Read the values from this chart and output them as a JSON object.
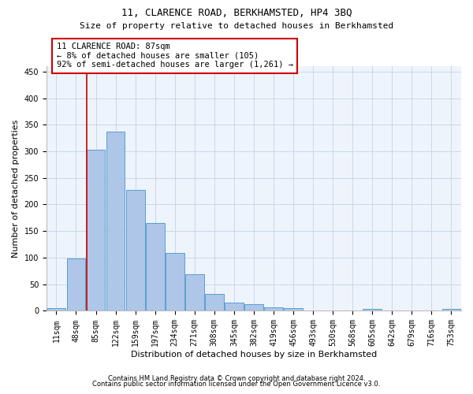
{
  "title": "11, CLARENCE ROAD, BERKHAMSTED, HP4 3BQ",
  "subtitle": "Size of property relative to detached houses in Berkhamsted",
  "xlabel": "Distribution of detached houses by size in Berkhamsted",
  "ylabel": "Number of detached properties",
  "footnote1": "Contains HM Land Registry data © Crown copyright and database right 2024.",
  "footnote2": "Contains public sector information licensed under the Open Government Licence v3.0.",
  "categories": [
    "11sqm",
    "48sqm",
    "85sqm",
    "122sqm",
    "159sqm",
    "197sqm",
    "234sqm",
    "271sqm",
    "308sqm",
    "345sqm",
    "382sqm",
    "419sqm",
    "456sqm",
    "493sqm",
    "530sqm",
    "568sqm",
    "605sqm",
    "642sqm",
    "679sqm",
    "716sqm",
    "753sqm"
  ],
  "values": [
    5,
    99,
    303,
    337,
    227,
    165,
    109,
    69,
    32,
    15,
    12,
    7,
    5,
    0,
    0,
    0,
    3,
    0,
    0,
    0,
    3
  ],
  "bar_color": "#aec6e8",
  "bar_edge_color": "#5a9fd4",
  "grid_color": "#c8d8e8",
  "background_color": "#eef4fb",
  "annotation_box_color": "#cc0000",
  "property_line_color": "#cc0000",
  "property_line_bar_index": 2,
  "annotation_line1": "11 CLARENCE ROAD: 87sqm",
  "annotation_line2": "← 8% of detached houses are smaller (105)",
  "annotation_line3": "92% of semi-detached houses are larger (1,261) →",
  "ylim": [
    0,
    460
  ],
  "yticks": [
    0,
    50,
    100,
    150,
    200,
    250,
    300,
    350,
    400,
    450
  ],
  "title_fontsize": 9,
  "subtitle_fontsize": 8,
  "ylabel_fontsize": 8,
  "xlabel_fontsize": 8,
  "tick_fontsize": 7,
  "annotation_fontsize": 7.5,
  "footnote_fontsize": 6
}
